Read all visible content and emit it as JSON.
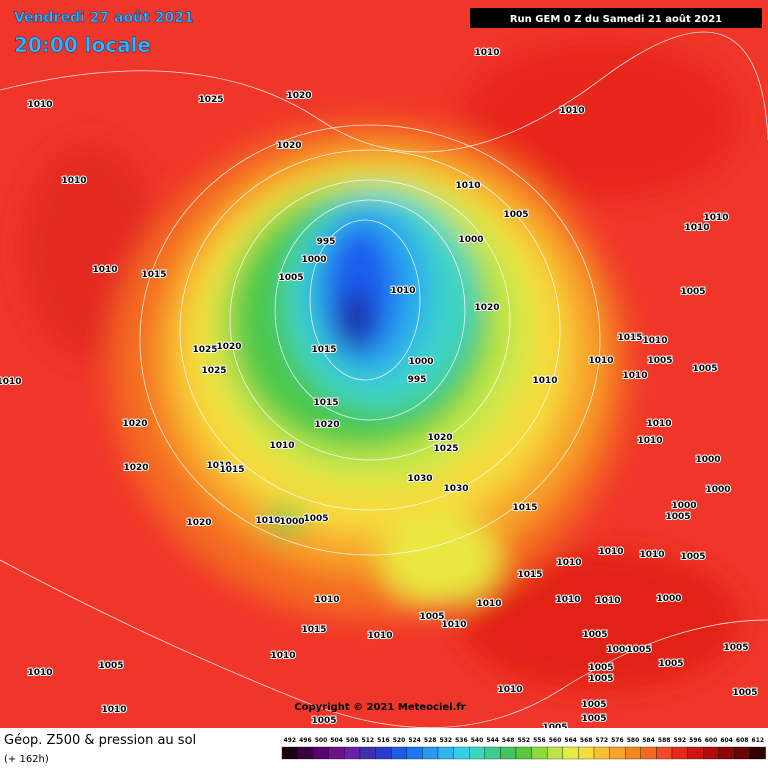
{
  "header": {
    "date": "Vendredi 27 août 2021",
    "time": "20:00 locale",
    "run": "Run GEM 0 Z du Samedi 21 août 2021"
  },
  "isobar_labels": [
    1010,
    1025,
    1020,
    1010,
    1010,
    1020,
    1010,
    1010,
    1005,
    1010,
    1010,
    995,
    1000,
    1000,
    1010,
    1015,
    1005,
    1010,
    1020,
    1005,
    1015,
    1010,
    1025,
    1020,
    1015,
    1010,
    1005,
    1000,
    1005,
    1025,
    1010,
    995,
    1010,
    1010,
    1015,
    1010,
    1020,
    1020,
    1010,
    1010,
    1020,
    1025,
    1000,
    1020,
    1010,
    1015,
    1030,
    1030,
    1000,
    1000,
    1005,
    1015,
    1010,
    1005,
    1000,
    1020,
    1005,
    1010,
    1010,
    1010,
    1015,
    1010,
    1010,
    1010,
    1010,
    1000,
    1005,
    1010,
    1015,
    1010,
    1005,
    1000,
    1005,
    1010,
    1005,
    1005,
    1005,
    1010,
    1005,
    1005,
    1010,
    1010,
    1005,
    1005,
    1005,
    1005,
    1005
  ],
  "copyright": "Copyright © 2021 Meteociel.fr",
  "legend": {
    "title": "Géop. Z500 & pression au sol",
    "subtitle": "(+ 162h)",
    "scale": [
      492,
      496,
      500,
      504,
      508,
      512,
      516,
      520,
      524,
      528,
      532,
      536,
      540,
      544,
      548,
      552,
      556,
      560,
      564,
      568,
      572,
      576,
      580,
      584,
      588,
      592,
      596,
      600,
      604,
      608,
      612
    ]
  }
}
